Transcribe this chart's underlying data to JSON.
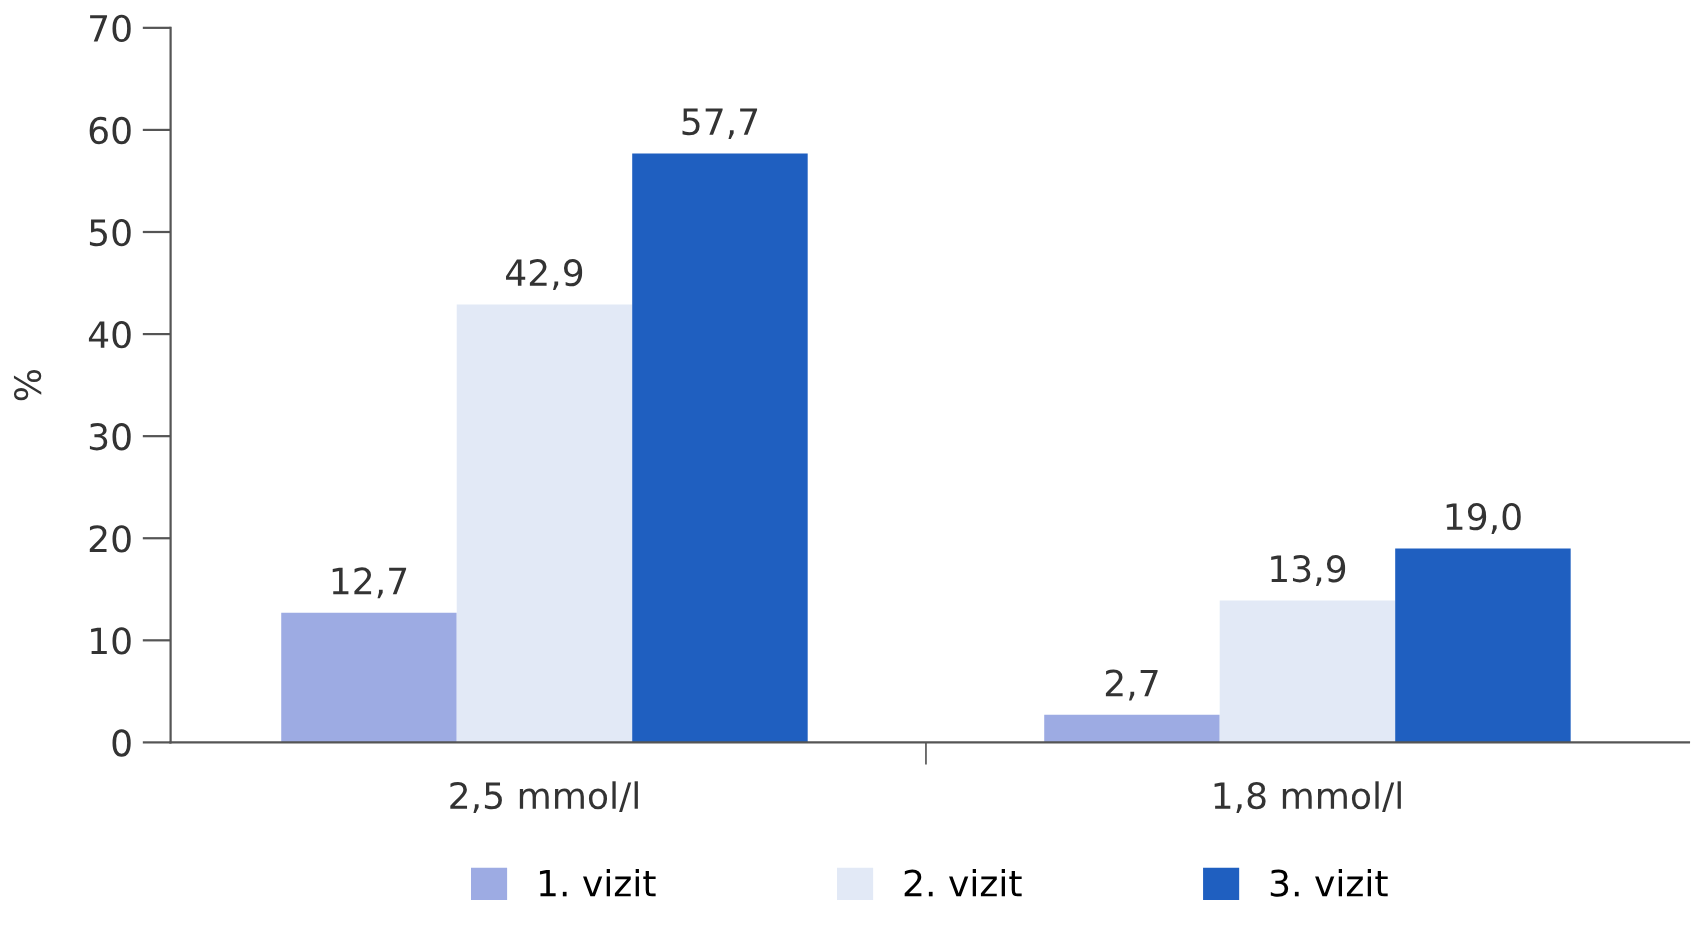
{
  "chart_data": {
    "type": "bar",
    "ylabel": "%",
    "categories": [
      "2,5 mmol/l",
      "1,8 mmol/l"
    ],
    "series": [
      {
        "name": "1. vizit",
        "color": "#9dabe3",
        "values": [
          12.7,
          2.7
        ],
        "value_labels": [
          "12,7",
          "2,7"
        ]
      },
      {
        "name": "2. vizit",
        "color": "#e2e9f6",
        "values": [
          42.9,
          13.9
        ],
        "value_labels": [
          "42,9",
          "13,9"
        ]
      },
      {
        "name": "3. vizit",
        "color": "#1f5fc0",
        "values": [
          57.7,
          19.0
        ],
        "value_labels": [
          "57,7",
          "19,0"
        ]
      }
    ],
    "ylim": [
      0,
      70
    ],
    "yticks": [
      0,
      10,
      20,
      30,
      40,
      50,
      60,
      70
    ],
    "grid": false,
    "legend": "bottom"
  }
}
